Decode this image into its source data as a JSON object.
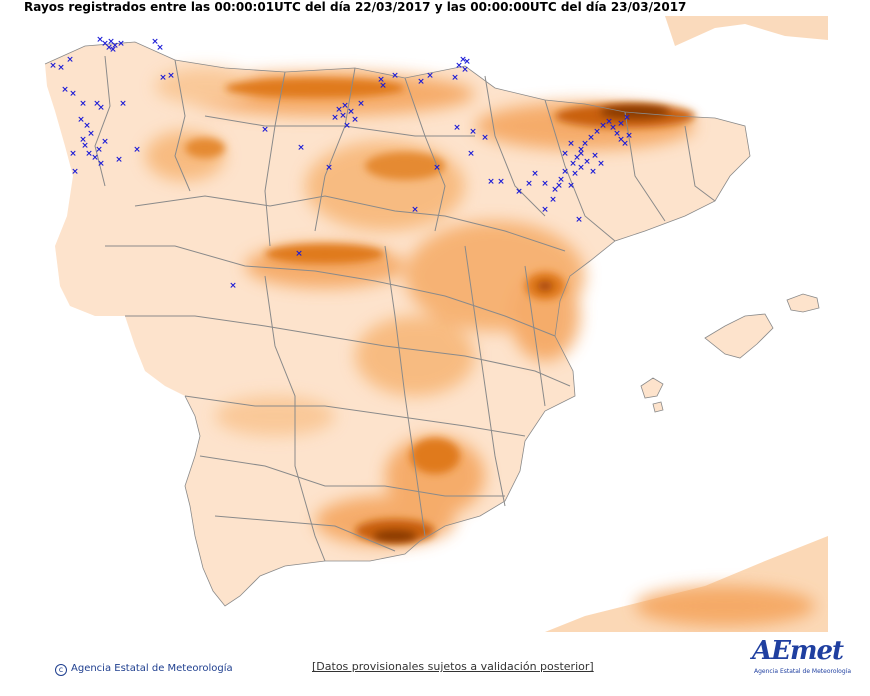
{
  "header": {
    "title": "Rayos registrados entre las 00:00:01UTC del día 22/03/2017 y las 00:00:00UTC del día 23/03/2017"
  },
  "map": {
    "region": "Península Ibérica y Baleares",
    "relief_colors": {
      "low": "#fde8d4",
      "mid": "#f9b36b",
      "high": "#e07a1f",
      "peak": "#8a3b05",
      "borders": "#8a8a8a"
    },
    "lightning_marker": {
      "symbol": "×",
      "color": "#1a1ad6"
    }
  },
  "footer": {
    "copyright": "Agencia Estatal de Meteorología",
    "disclaimer": "[Datos provisionales sujetos a validación posterior]",
    "logo_text": "AEmet",
    "logo_sub": "Agencia Estatal de Meteorología"
  }
}
